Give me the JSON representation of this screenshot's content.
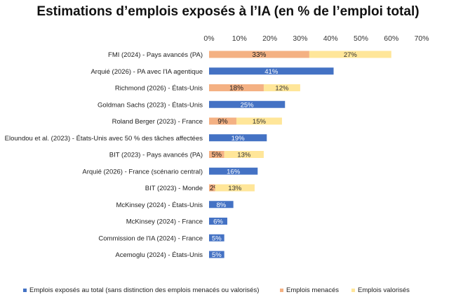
{
  "chart_data": {
    "type": "bar",
    "orientation": "horizontal",
    "stacked": true,
    "title": "Estimations d’emplois exposés à l’IA (en % de l’emploi total)",
    "x_axis": {
      "range": [
        0,
        70
      ],
      "ticks": [
        0,
        10,
        20,
        30,
        40,
        50,
        60,
        70
      ],
      "tick_labels": [
        "0%",
        "10%",
        "20%",
        "30%",
        "40%",
        "50%",
        "60%",
        "70%"
      ],
      "position": "top"
    },
    "categories": [
      "FMI (2024) - Pays avancés (PA)",
      "Arquié (2026) - PA avec l'IA agentique",
      "Richmond (2026) - États-Unis",
      "Goldman Sachs (2023) - États-Unis",
      "Roland Berger (2023) - France",
      "Eloundou et al. (2023) - États-Unis avec 50 % des tâches affectées",
      "BIT (2023) - Pays avancés (PA)",
      "Arquié (2026) - France (scénario central)",
      "BIT (2023) - Monde",
      "McKinsey (2024) - États-Unis",
      "McKinsey (2024) - France",
      "Commission de l'IA (2024) - France",
      "Acemoglu (2024) - États-Unis"
    ],
    "series": [
      {
        "name": "Emplois exposés au total (sans distinction des emplois menacés ou valorisés)",
        "color": "#4472C4",
        "values": [
          null,
          41,
          null,
          25,
          null,
          19,
          null,
          16,
          null,
          8,
          6,
          5,
          5
        ],
        "labels": [
          "",
          "41%",
          "",
          "25%",
          "",
          "19%",
          "",
          "16%",
          "",
          "8%",
          "6%",
          "5%",
          "5%"
        ]
      },
      {
        "name": "Emplois menacés",
        "color": "#F4B183",
        "values": [
          33,
          null,
          18,
          null,
          9,
          null,
          5,
          null,
          2,
          null,
          null,
          null,
          null
        ],
        "labels": [
          "33%",
          "",
          "18%",
          "",
          "9%",
          "",
          "5%",
          "",
          "2%",
          "",
          "",
          "",
          ""
        ]
      },
      {
        "name": "Emplois valorisés",
        "color": "#FFE699",
        "values": [
          27,
          null,
          12,
          null,
          15,
          null,
          13,
          null,
          13,
          null,
          null,
          null,
          null
        ],
        "labels": [
          "27%",
          "",
          "12%",
          "",
          "15%",
          "",
          "13%",
          "",
          "13%",
          "",
          "",
          "",
          ""
        ]
      }
    ],
    "legend": {
      "position": "bottom"
    },
    "grid": false
  }
}
